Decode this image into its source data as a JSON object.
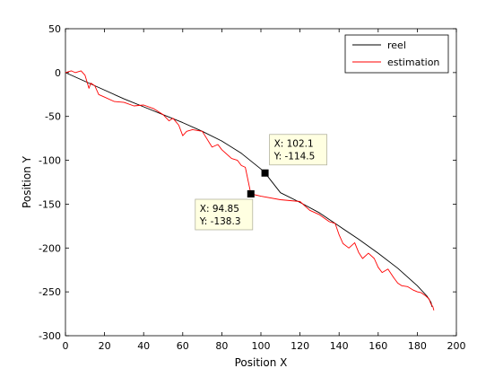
{
  "chart_data": {
    "type": "line",
    "xlabel": "Position X",
    "ylabel": "Position Y",
    "xlim": [
      0,
      200
    ],
    "ylim": [
      -300,
      50
    ],
    "xticks": [
      0,
      20,
      40,
      60,
      80,
      100,
      120,
      140,
      160,
      180,
      200
    ],
    "yticks": [
      50,
      0,
      -50,
      -100,
      -150,
      -200,
      -250,
      -300
    ],
    "grid": false,
    "legend_position": "top-right",
    "series": [
      {
        "name": "reel",
        "color": "#000000",
        "x": [
          0,
          10,
          20,
          30,
          40,
          50,
          60,
          70,
          80,
          90,
          100,
          102.1,
          110,
          120,
          130,
          140,
          150,
          160,
          170,
          180,
          185,
          187,
          187.5
        ],
        "y": [
          0,
          -10,
          -20,
          -30,
          -39,
          -48,
          -57,
          -67,
          -78,
          -92,
          -110,
          -114.5,
          -137,
          -148,
          -160,
          -175,
          -190,
          -206,
          -223,
          -243,
          -255,
          -262,
          -267
        ]
      },
      {
        "name": "estimation",
        "color": "#ff0000",
        "x": [
          0,
          3,
          5,
          8,
          10,
          12,
          13,
          15,
          17,
          20,
          25,
          30,
          35,
          40,
          45,
          50,
          53,
          55,
          58,
          60,
          62,
          65,
          70,
          75,
          78,
          80,
          85,
          88,
          90,
          92,
          94.85,
          100,
          110,
          120,
          125,
          130,
          135,
          138,
          140,
          142,
          145,
          148,
          150,
          152,
          155,
          158,
          160,
          162,
          165,
          168,
          170,
          172,
          175,
          178,
          180,
          182,
          184,
          186,
          187,
          188,
          188.5
        ],
        "y": [
          0,
          2,
          0,
          2,
          -3,
          -18,
          -12,
          -15,
          -25,
          -28,
          -33,
          -34,
          -38,
          -37,
          -41,
          -48,
          -55,
          -52,
          -60,
          -72,
          -67,
          -65,
          -67,
          -85,
          -82,
          -88,
          -98,
          -100,
          -106,
          -108,
          -138.3,
          -141,
          -145,
          -147,
          -157,
          -162,
          -170,
          -172,
          -185,
          -195,
          -200,
          -194,
          -205,
          -212,
          -206,
          -212,
          -222,
          -228,
          -224,
          -234,
          -240,
          -243,
          -244,
          -248,
          -250,
          -251,
          -254,
          -258,
          -264,
          -267,
          -271
        ]
      }
    ],
    "annotations": [
      {
        "x": 102.1,
        "y": -114.5,
        "line1": "X: 102.1",
        "line2": "Y: -114.5"
      },
      {
        "x": 94.85,
        "y": -138.3,
        "line1": "X: 94.85",
        "line2": "Y: -138.3"
      }
    ]
  }
}
